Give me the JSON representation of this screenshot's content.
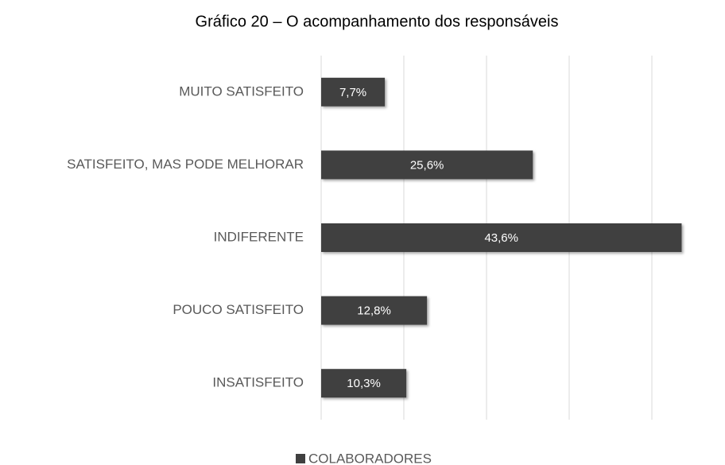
{
  "chart_data": {
    "type": "bar",
    "orientation": "horizontal",
    "title": "Gráfico 20 – O acompanhamento dos responsáveis",
    "categories": [
      "MUITO SATISFEITO",
      "SATISFEITO, MAS PODE MELHORAR",
      "INDIFERENTE",
      "POUCO SATISFEITO",
      "INSATISFEITO"
    ],
    "series": [
      {
        "name": "COLABORADORES",
        "color": "#404040",
        "values": [
          7.7,
          25.6,
          43.6,
          12.8,
          10.3
        ],
        "value_labels": [
          "7,7%",
          "25,6%",
          "43,6%",
          "12,8%",
          "10,3%"
        ]
      }
    ],
    "xlim": [
      0,
      45
    ],
    "xticks": [
      0,
      10,
      20,
      30,
      40
    ],
    "grid": true,
    "legend": "bottom"
  }
}
